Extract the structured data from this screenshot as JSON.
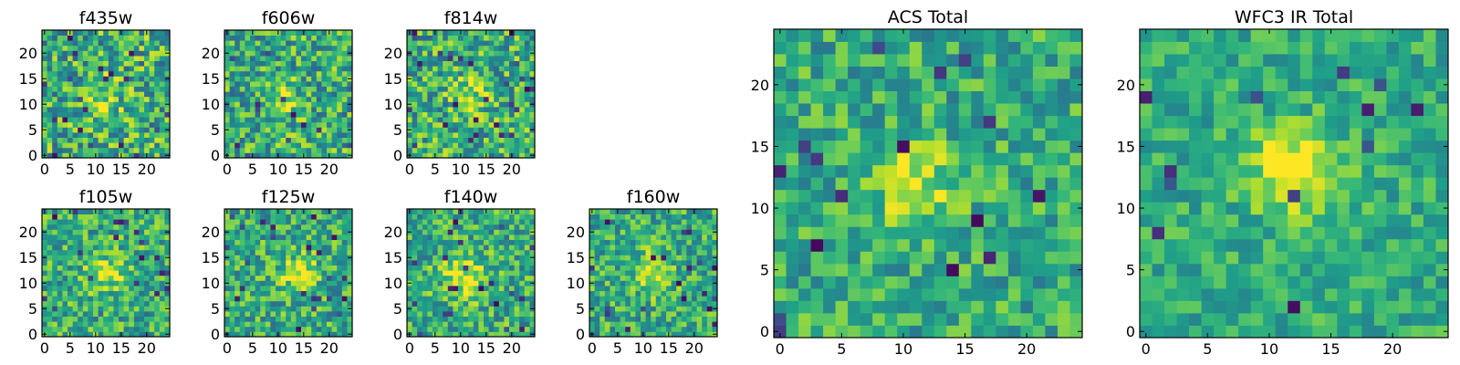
{
  "chart_data": [
    {
      "type": "heatmap",
      "title": "f435w",
      "colormap": "viridis",
      "grid_size": [
        25,
        25
      ],
      "xticks": [
        0,
        5,
        10,
        15,
        20
      ],
      "yticks": [
        0,
        5,
        10,
        15,
        20
      ],
      "xlim": [
        -0.5,
        24.5
      ],
      "ylim": [
        -0.5,
        24.5
      ],
      "peak_xy": [
        11,
        11
      ],
      "peak_level": 0.72,
      "noise": 0.32,
      "blob_sigma": 2.8,
      "colorbar": false,
      "grid": false
    },
    {
      "type": "heatmap",
      "title": "f606w",
      "colormap": "viridis",
      "grid_size": [
        25,
        25
      ],
      "xticks": [
        0,
        5,
        10,
        15,
        20
      ],
      "yticks": [
        0,
        5,
        10,
        15,
        20
      ],
      "xlim": [
        -0.5,
        24.5
      ],
      "ylim": [
        -0.5,
        24.5
      ],
      "peak_xy": [
        11,
        11
      ],
      "peak_level": 0.75,
      "noise": 0.3,
      "blob_sigma": 2.5,
      "colorbar": false,
      "grid": false
    },
    {
      "type": "heatmap",
      "title": "f814w",
      "colormap": "viridis",
      "grid_size": [
        25,
        25
      ],
      "xticks": [
        0,
        5,
        10,
        15,
        20
      ],
      "yticks": [
        0,
        5,
        10,
        15,
        20
      ],
      "xlim": [
        -0.5,
        24.5
      ],
      "ylim": [
        -0.5,
        24.5
      ],
      "peak_xy": [
        12,
        12
      ],
      "peak_level": 0.74,
      "noise": 0.3,
      "blob_sigma": 2.6,
      "colorbar": false,
      "grid": false
    },
    {
      "type": "heatmap",
      "title": "f105w",
      "colormap": "viridis",
      "grid_size": [
        25,
        25
      ],
      "xticks": [
        0,
        5,
        10,
        15,
        20
      ],
      "yticks": [
        0,
        5,
        10,
        15,
        20
      ],
      "xlim": [
        -0.5,
        24.5
      ],
      "ylim": [
        -0.5,
        24.5
      ],
      "peak_xy": [
        12,
        12
      ],
      "peak_level": 0.8,
      "noise": 0.26,
      "blob_sigma": 2.6,
      "colorbar": false,
      "grid": false
    },
    {
      "type": "heatmap",
      "title": "f125w",
      "colormap": "viridis",
      "grid_size": [
        25,
        25
      ],
      "xticks": [
        0,
        5,
        10,
        15,
        20
      ],
      "yticks": [
        0,
        5,
        10,
        15,
        20
      ],
      "xlim": [
        -0.5,
        24.5
      ],
      "ylim": [
        -0.5,
        24.5
      ],
      "peak_xy": [
        14,
        12
      ],
      "peak_level": 0.8,
      "noise": 0.26,
      "blob_sigma": 2.5,
      "colorbar": false,
      "grid": false
    },
    {
      "type": "heatmap",
      "title": "f140w",
      "colormap": "viridis",
      "grid_size": [
        25,
        25
      ],
      "xticks": [
        0,
        5,
        10,
        15,
        20
      ],
      "yticks": [
        0,
        5,
        10,
        15,
        20
      ],
      "xlim": [
        -0.5,
        24.5
      ],
      "ylim": [
        -0.5,
        24.5
      ],
      "peak_xy": [
        11,
        11
      ],
      "peak_level": 0.82,
      "noise": 0.26,
      "blob_sigma": 3.0,
      "colorbar": false,
      "grid": false
    },
    {
      "type": "heatmap",
      "title": "f160w",
      "colormap": "viridis",
      "grid_size": [
        25,
        25
      ],
      "xticks": [
        0,
        5,
        10,
        15,
        20
      ],
      "yticks": [
        0,
        5,
        10,
        15,
        20
      ],
      "xlim": [
        -0.5,
        24.5
      ],
      "ylim": [
        -0.5,
        24.5
      ],
      "peak_xy": [
        12,
        12
      ],
      "peak_level": 0.86,
      "noise": 0.25,
      "blob_sigma": 2.6,
      "colorbar": false,
      "grid": false
    },
    {
      "type": "heatmap",
      "title": "ACS Total",
      "colormap": "viridis",
      "grid_size": [
        25,
        25
      ],
      "xticks": [
        0,
        5,
        10,
        15,
        20
      ],
      "yticks": [
        0,
        5,
        10,
        15,
        20
      ],
      "xlim": [
        -0.5,
        24.5
      ],
      "ylim": [
        -0.5,
        24.5
      ],
      "peak_xy": [
        11,
        12
      ],
      "peak_level": 0.8,
      "noise": 0.22,
      "blob_sigma": 2.4,
      "colorbar": false,
      "grid": false
    },
    {
      "type": "heatmap",
      "title": "WFC3 IR Total",
      "colormap": "viridis",
      "grid_size": [
        25,
        25
      ],
      "xticks": [
        0,
        5,
        10,
        15,
        20
      ],
      "yticks": [
        0,
        5,
        10,
        15,
        20
      ],
      "xlim": [
        -0.5,
        24.5
      ],
      "ylim": [
        -0.5,
        24.5
      ],
      "peak_xy": [
        12,
        13
      ],
      "peak_level": 0.95,
      "noise": 0.17,
      "blob_sigma": 2.4,
      "colorbar": false,
      "grid": false
    }
  ]
}
